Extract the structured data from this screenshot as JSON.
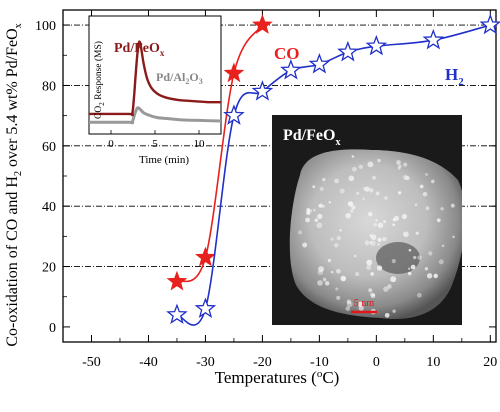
{
  "chart_data": [
    {
      "type": "line",
      "xlabel": "Temperatures (",
      "xlabel_sup": "o",
      "xlabel_tail": "C)",
      "ylabel": "Co-oxidation of CO and H",
      "ylabel_sub1": "2",
      "ylabel_mid": " over 5.4 wt% Pd/FeO",
      "ylabel_sub2": "x",
      "xlim": [
        -55,
        21
      ],
      "ylim": [
        -5,
        105
      ],
      "xticks": [
        -50,
        -40,
        -30,
        -20,
        -10,
        0,
        10,
        20
      ],
      "yticks": [
        0,
        20,
        40,
        60,
        80,
        100
      ],
      "ygrid_dash_dot": [
        20,
        40,
        60,
        80,
        100
      ],
      "legend_placement": "inline labels at right",
      "series": [
        {
          "name": "CO",
          "color": "#e8201e",
          "marker": "filled-star",
          "x": [
            -35,
            -30,
            -25,
            -20
          ],
          "y": [
            15,
            23,
            84,
            100
          ]
        },
        {
          "name": "H",
          "name_sub": "2",
          "color": "#2030c8",
          "marker": "open-star",
          "x": [
            -35,
            -30,
            -25,
            -20,
            -15,
            -10,
            -5,
            0,
            10,
            20
          ],
          "y": [
            4,
            6,
            70,
            78,
            85,
            87,
            91,
            93,
            95,
            100
          ]
        }
      ]
    },
    {
      "type": "line",
      "inset": true,
      "xlabel": "Time (min)",
      "ylabel": "CO",
      "ylabel_sub": "2",
      "ylabel_tail": " Response (MS)",
      "xticks": [
        0,
        5,
        10
      ],
      "xlim": [
        -2.5,
        12.5
      ],
      "ylim": [
        0,
        1
      ],
      "series": [
        {
          "name": "Pd/FeO",
          "name_sub": "x",
          "color": "#8b1a1a",
          "x": [
            -2.5,
            2,
            2.4,
            2.6,
            2.8,
            3.0,
            3.2,
            3.4,
            3.7,
            4.1,
            4.6,
            5.3,
            6.2,
            7.5,
            9,
            11,
            12.5
          ],
          "y": [
            0.17,
            0.17,
            0.17,
            0.3,
            0.5,
            0.68,
            0.78,
            0.74,
            0.6,
            0.47,
            0.39,
            0.34,
            0.31,
            0.29,
            0.28,
            0.27,
            0.27
          ]
        },
        {
          "name": "Pd/Al",
          "name_sub": "2",
          "name_mid": "O",
          "name_sub2": "3",
          "color": "#999999",
          "x": [
            -2.5,
            2,
            2.4,
            2.7,
            3.0,
            3.3,
            3.7,
            4.3,
            5.2,
            6.5,
            8,
            10,
            12.5
          ],
          "y": [
            0.1,
            0.1,
            0.1,
            0.17,
            0.22,
            0.21,
            0.18,
            0.16,
            0.14,
            0.13,
            0.12,
            0.115,
            0.11
          ]
        }
      ]
    }
  ],
  "micrograph": {
    "title": "Pd/FeO",
    "title_sub": "x",
    "scalebar_label": "5  nm",
    "scalebar_color": "#e01818"
  }
}
